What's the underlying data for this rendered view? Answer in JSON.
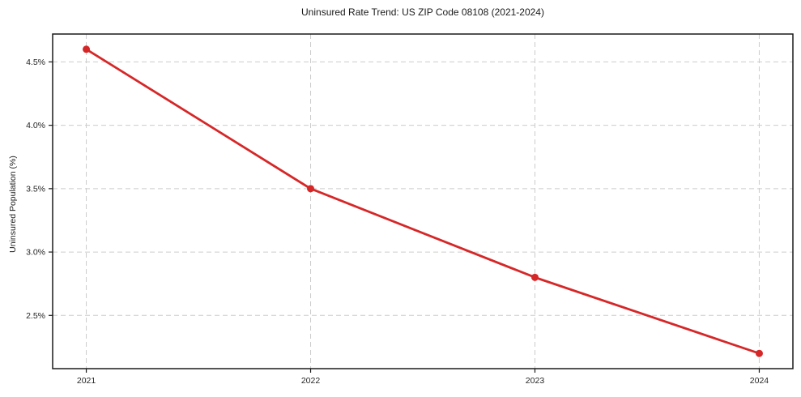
{
  "title": "Uninsured Rate Trend: US ZIP Code 08108 (2021-2024)",
  "y_axis_label": "Uninsured Population (%)",
  "colors": {
    "line": "#d62728",
    "marker": "#d62728",
    "grid": "#cccccc",
    "spine": "#1a1a1a",
    "tick_text": "#262626",
    "background": "#ffffff"
  },
  "chart_data": {
    "type": "line",
    "title": "Uninsured Rate Trend: US ZIP Code 08108 (2021-2024)",
    "xlabel": "",
    "ylabel": "Uninsured Population (%)",
    "x": [
      2021,
      2022,
      2023,
      2024
    ],
    "values": [
      4.6,
      3.5,
      2.8,
      2.2
    ],
    "xticks": [
      2021,
      2022,
      2023,
      2024
    ],
    "xtick_labels": [
      "2021",
      "2022",
      "2023",
      "2024"
    ],
    "yticks": [
      2.5,
      3.0,
      3.5,
      4.0,
      4.5
    ],
    "ytick_labels": [
      "2.5%",
      "3.0%",
      "3.5%",
      "4.0%",
      "4.5%"
    ],
    "xlim": [
      2020.85,
      2024.15
    ],
    "ylim": [
      2.08,
      4.72
    ],
    "grid": true,
    "grid_style": "dashed",
    "legend_position": "none",
    "line_color": "#d62728",
    "marker": "o"
  }
}
